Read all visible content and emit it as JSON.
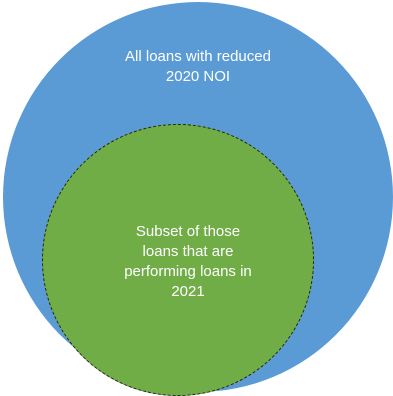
{
  "diagram": {
    "outer_set": {
      "label_lines": [
        "All loans with reduced",
        "2020 NOI"
      ],
      "fill_color": "#5b9bd5"
    },
    "inner_set": {
      "label_lines": [
        "Subset of those",
        "loans that are",
        "performing loans in",
        "2021"
      ],
      "fill_color": "#70ad47",
      "border_style": "dashed"
    }
  }
}
